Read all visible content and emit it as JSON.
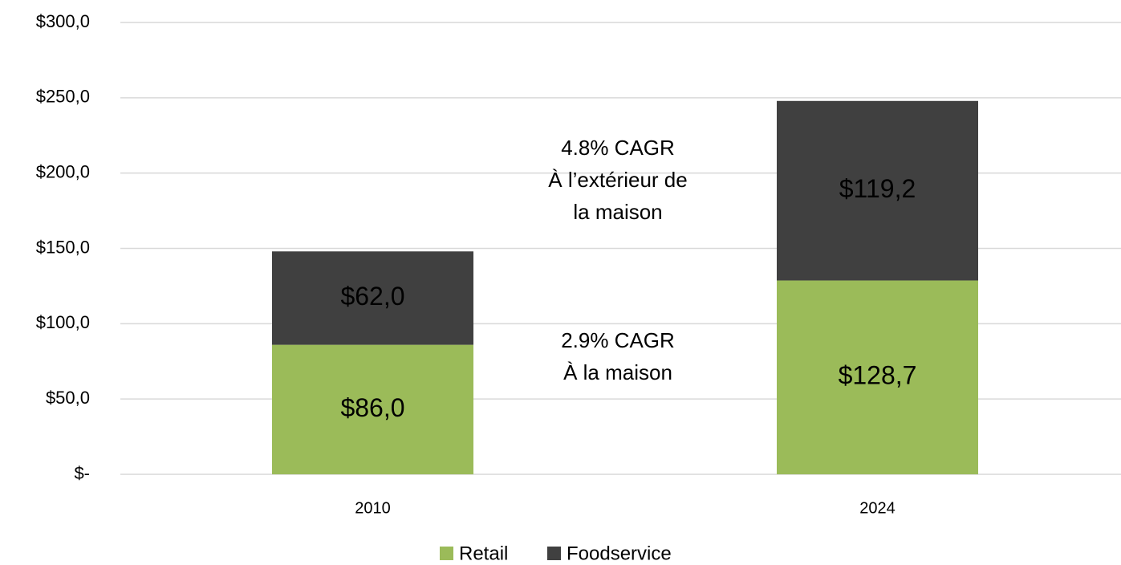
{
  "chart_data": {
    "type": "bar",
    "stacked": true,
    "categories": [
      "2010",
      "2024"
    ],
    "series": [
      {
        "name": "Retail",
        "color": "#9bbb59",
        "values": [
          86.0,
          128.7
        ],
        "value_labels": [
          "$86,0",
          "$128,7"
        ]
      },
      {
        "name": "Foodservice",
        "color": "#404040",
        "values": [
          62.0,
          119.2
        ],
        "value_labels": [
          "$62,0",
          "$119,2"
        ]
      }
    ],
    "ylim": [
      0,
      300
    ],
    "yticks": [
      {
        "value": 0,
        "label": "$-"
      },
      {
        "value": 50,
        "label": "$50,0"
      },
      {
        "value": 100,
        "label": "$100,0"
      },
      {
        "value": 150,
        "label": "$150,0"
      },
      {
        "value": 200,
        "label": "$200,0"
      },
      {
        "value": 250,
        "label": "$250,0"
      },
      {
        "value": 300,
        "label": "$300,0"
      }
    ],
    "grid": true,
    "legend": "bottom",
    "annotations": [
      {
        "lines": [
          "4.8% CAGR",
          "À l’extérieur de",
          "la maison"
        ]
      },
      {
        "lines": [
          "2.9% CAGR",
          "À la maison"
        ]
      }
    ]
  }
}
